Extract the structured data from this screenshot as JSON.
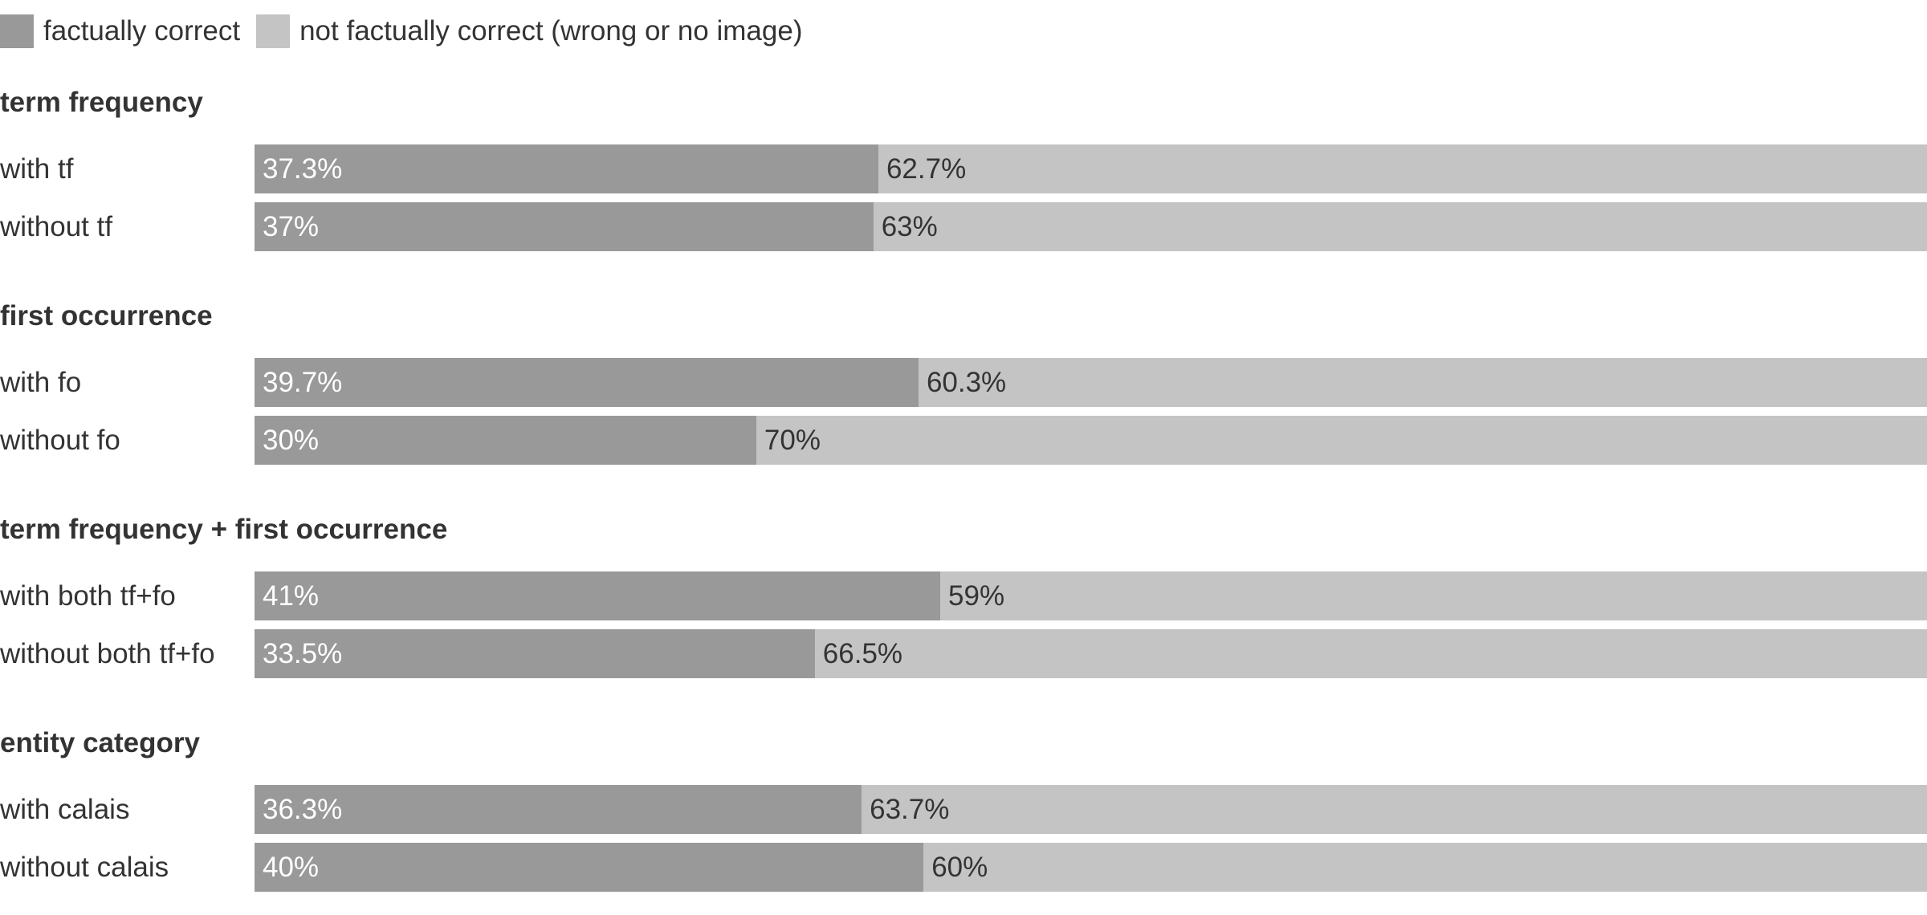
{
  "legend": {
    "items": [
      {
        "label": "factually correct",
        "color": "#999999"
      },
      {
        "label": "not factually correct (wrong or no image)",
        "color": "#c4c4c4"
      }
    ]
  },
  "chart_data": {
    "type": "bar",
    "orientation": "horizontal",
    "stacked": true,
    "normalized_percent": true,
    "series": [
      {
        "name": "factually correct",
        "color": "#999999"
      },
      {
        "name": "not factually correct (wrong or no image)",
        "color": "#c4c4c4"
      }
    ],
    "groups": [
      {
        "title": "term frequency",
        "rows": [
          {
            "label": "with tf",
            "values": [
              37.3,
              62.7
            ],
            "value_labels": [
              "37.3%",
              "62.7%"
            ]
          },
          {
            "label": "without tf",
            "values": [
              37,
              63
            ],
            "value_labels": [
              "37%",
              "63%"
            ]
          }
        ]
      },
      {
        "title": "first occurrence",
        "rows": [
          {
            "label": "with fo",
            "values": [
              39.7,
              60.3
            ],
            "value_labels": [
              "39.7%",
              "60.3%"
            ]
          },
          {
            "label": "without fo",
            "values": [
              30,
              70
            ],
            "value_labels": [
              "30%",
              "70%"
            ]
          }
        ]
      },
      {
        "title": "term frequency + first occurrence",
        "rows": [
          {
            "label": "with both tf+fo",
            "values": [
              41,
              59
            ],
            "value_labels": [
              "41%",
              "59%"
            ]
          },
          {
            "label": "without both tf+fo",
            "values": [
              33.5,
              66.5
            ],
            "value_labels": [
              "33.5%",
              "66.5%"
            ]
          }
        ]
      },
      {
        "title": "entity category",
        "rows": [
          {
            "label": "with calais",
            "values": [
              36.3,
              63.7
            ],
            "value_labels": [
              "36.3%",
              "63.7%"
            ]
          },
          {
            "label": "without calais",
            "values": [
              40,
              60
            ],
            "value_labels": [
              "40%",
              "60%"
            ]
          }
        ]
      }
    ]
  }
}
